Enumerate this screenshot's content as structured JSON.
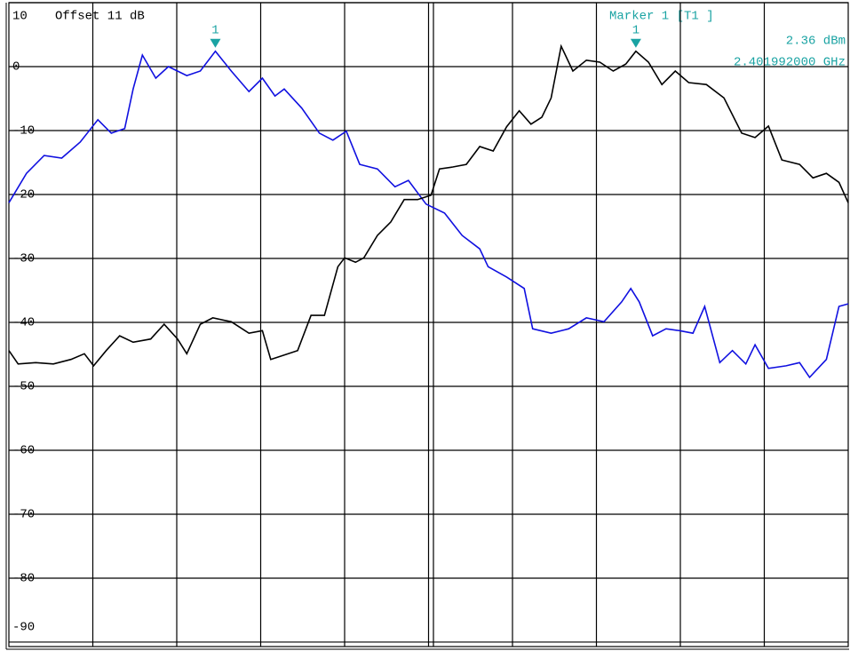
{
  "chart_data": {
    "type": "line",
    "offset_text": "Offset  11 dB",
    "marker_title": "Marker 1 [T1 ]",
    "marker_level": "2.36 dBm",
    "marker_frequency": "2.401992000 GHz",
    "ylim": [
      -90.7,
      10
    ],
    "yticks": [
      10,
      0,
      -10,
      -20,
      -30,
      -40,
      -50,
      -60,
      -70,
      -80,
      -90
    ],
    "xlim": [
      0,
      10
    ],
    "xdivisions": 10,
    "grid": true,
    "annotation_color": "#1aa3a3",
    "markers": [
      {
        "label": "1",
        "series": 0,
        "index": 14
      },
      {
        "label": "1",
        "series": 1,
        "index": 49
      }
    ],
    "series": [
      {
        "color": "#1010e0",
        "x": [
          0,
          0.21,
          0.42,
          0.63,
          0.85,
          1.06,
          1.22,
          1.38,
          1.48,
          1.59,
          1.75,
          1.9,
          2.12,
          2.28,
          2.46,
          2.65,
          2.86,
          3.02,
          3.17,
          3.28,
          3.49,
          3.7,
          3.86,
          4.02,
          4.18,
          4.39,
          4.6,
          4.76,
          4.97,
          5.19,
          5.4,
          5.61,
          5.71,
          5.93,
          6.14,
          6.24,
          6.46,
          6.67,
          6.88,
          7.09,
          7.3,
          7.41,
          7.51,
          7.67,
          7.83,
          7.99,
          8.15,
          8.29,
          8.47,
          8.62,
          8.78,
          8.89,
          9.05,
          9.26,
          9.42,
          9.54,
          9.74,
          9.89,
          10
        ],
        "values": [
          -21.3,
          -16.7,
          -13.9,
          -14.3,
          -11.8,
          -8.3,
          -10.4,
          -9.7,
          -3.5,
          1.8,
          -1.8,
          0,
          -1.4,
          -0.7,
          2.4,
          -0.7,
          -3.9,
          -1.8,
          -4.6,
          -3.5,
          -6.5,
          -10.4,
          -11.5,
          -10.1,
          -15.3,
          -16,
          -18.8,
          -17.8,
          -21.5,
          -22.9,
          -26.4,
          -28.5,
          -31.3,
          -32.9,
          -34.7,
          -41,
          -41.7,
          -41,
          -39.3,
          -39.9,
          -36.8,
          -34.7,
          -36.8,
          -42.1,
          -41,
          -41.3,
          -41.7,
          -37.5,
          -46.3,
          -44.4,
          -46.5,
          -43.5,
          -47.2,
          -46.8,
          -46.3,
          -48.6,
          -45.8,
          -37.5,
          -37.1
        ]
      },
      {
        "color": "#000000",
        "x": [
          0,
          0.11,
          0.32,
          0.53,
          0.74,
          0.9,
          1.01,
          1.16,
          1.32,
          1.48,
          1.69,
          1.85,
          2.01,
          2.12,
          2.28,
          2.43,
          2.65,
          2.86,
          3.02,
          3.12,
          3.28,
          3.44,
          3.6,
          3.76,
          3.92,
          4,
          4.13,
          4.23,
          4.39,
          4.55,
          4.71,
          4.87,
          5.03,
          5.13,
          5.29,
          5.45,
          5.61,
          5.77,
          5.93,
          6.08,
          6.22,
          6.35,
          6.46,
          6.58,
          6.72,
          6.88,
          7.04,
          7.2,
          7.35,
          7.47,
          7.62,
          7.78,
          7.94,
          8.1,
          8.31,
          8.52,
          8.73,
          8.89,
          9.05,
          9.21,
          9.42,
          9.58,
          9.74,
          9.89,
          10
        ],
        "values": [
          -44.4,
          -46.5,
          -46.3,
          -46.5,
          -45.8,
          -44.9,
          -46.8,
          -44.4,
          -42.1,
          -43.1,
          -42.6,
          -40.3,
          -42.6,
          -44.9,
          -40.3,
          -39.3,
          -39.9,
          -41.7,
          -41.3,
          -45.8,
          -45.1,
          -44.4,
          -38.9,
          -38.9,
          -31.3,
          -29.9,
          -30.6,
          -29.9,
          -26.4,
          -24.3,
          -20.8,
          -20.8,
          -20.1,
          -16,
          -15.7,
          -15.3,
          -12.5,
          -13.2,
          -9.4,
          -6.9,
          -9,
          -7.9,
          -4.9,
          3.2,
          -0.7,
          1,
          0.7,
          -0.7,
          0.4,
          2.4,
          0.7,
          -2.8,
          -0.7,
          -2.5,
          -2.8,
          -4.9,
          -10.4,
          -11.1,
          -9.3,
          -14.6,
          -15.3,
          -17.4,
          -16.7,
          -18.1,
          -21.3
        ]
      }
    ]
  }
}
